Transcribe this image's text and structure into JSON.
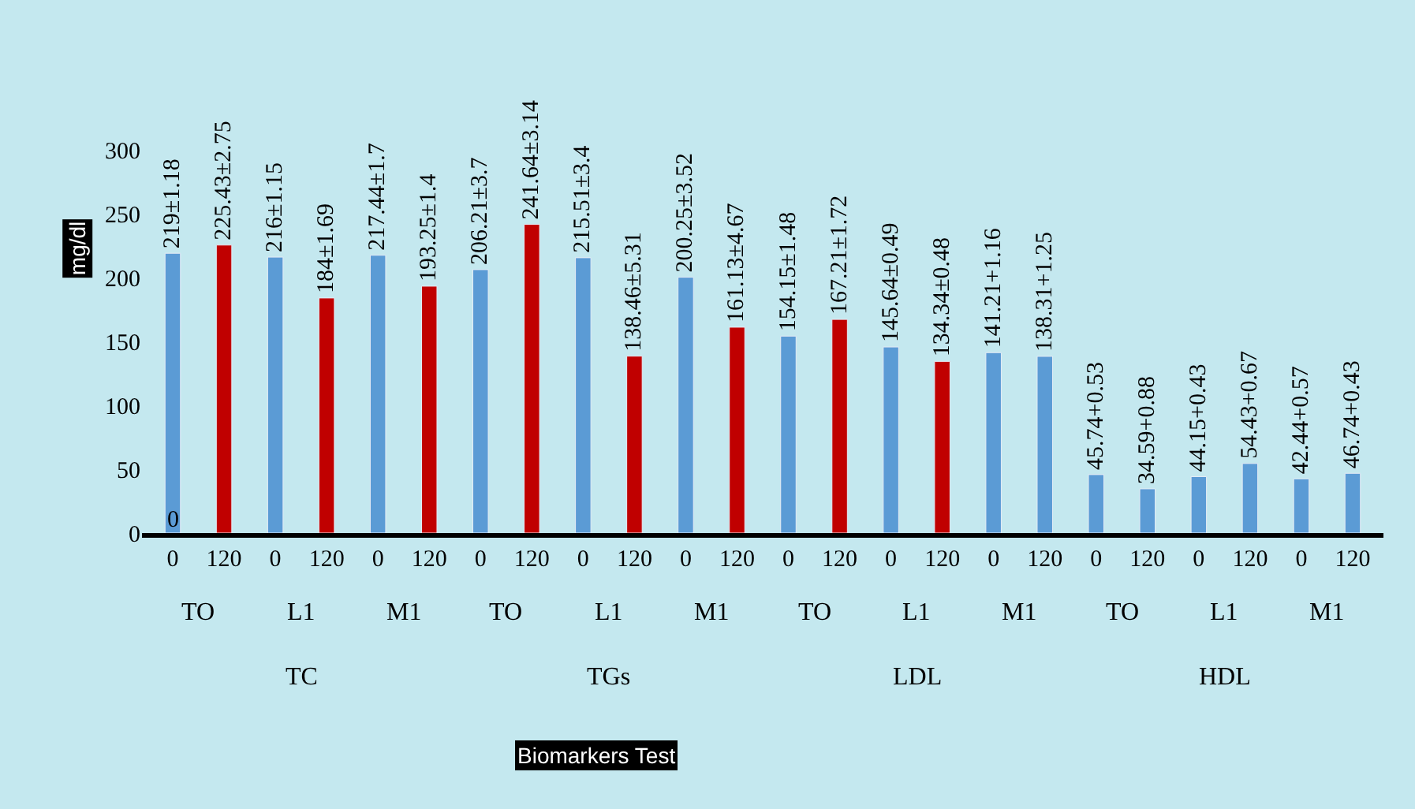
{
  "chart_data": {
    "type": "bar",
    "ylabel": "mg/dl",
    "categories": [
      "0",
      "120",
      "0",
      "120",
      "0",
      "120",
      "0",
      "120",
      "0",
      "120",
      "0",
      "120",
      "0",
      "120",
      "0",
      "120",
      "0",
      "120",
      "0",
      "120",
      "0",
      "120",
      "0",
      "120"
    ],
    "values": [
      219,
      225.43,
      216,
      184,
      217.44,
      193.25,
      206.21,
      241.64,
      215.51,
      138.46,
      200.25,
      161.13,
      154.15,
      167.21,
      145.64,
      134.34,
      141.21,
      138.31,
      45.74,
      34.59,
      44.15,
      54.43,
      42.44,
      46.74
    ],
    "colors": [
      "#5b9bd5",
      "#c00000",
      "#5b9bd5",
      "#c00000",
      "#5b9bd5",
      "#c00000",
      "#5b9bd5",
      "#c00000",
      "#5b9bd5",
      "#c00000",
      "#5b9bd5",
      "#c00000",
      "#5b9bd5",
      "#c00000",
      "#5b9bd5",
      "#c00000",
      "#5b9bd5",
      "#5b9bd5",
      "#5b9bd5",
      "#5b9bd5",
      "#5b9bd5",
      "#5b9bd5",
      "#5b9bd5",
      "#5b9bd5"
    ],
    "value_labels": [
      "219±1.18",
      "225.43±2.75",
      "216±1.15",
      "184±1.69",
      "217.44±1.7",
      "193.25±1.4",
      "206.21±3.7",
      "241.64±3.14",
      "215.51±3.4",
      "138.46±5.31",
      "200.25±3.52",
      "161.13±4.67",
      "154.15±1.48",
      "167.21±1.72",
      "145.64±0.49",
      "134.34±0.48",
      "141.21+1.16",
      "138.31+1.25",
      "45.74+0.53",
      "34.59+0.88",
      "44.15+0.43",
      "54.43+0.67",
      "42.44+0.57",
      "46.74+0.43"
    ],
    "annotations": [
      "TO",
      "L1",
      "M1",
      "TO",
      "L1",
      "M1",
      "TO",
      "L1",
      "M1",
      "TO",
      "L1",
      "M1",
      "TC",
      "TGs",
      "LDL",
      "HDL",
      "0",
      "Biomarkers Test"
    ],
    "ylim": [
      0,
      300
    ],
    "yticks": [
      0,
      50,
      100,
      150,
      200,
      250,
      300
    ],
    "grid": false,
    "legend": false
  }
}
